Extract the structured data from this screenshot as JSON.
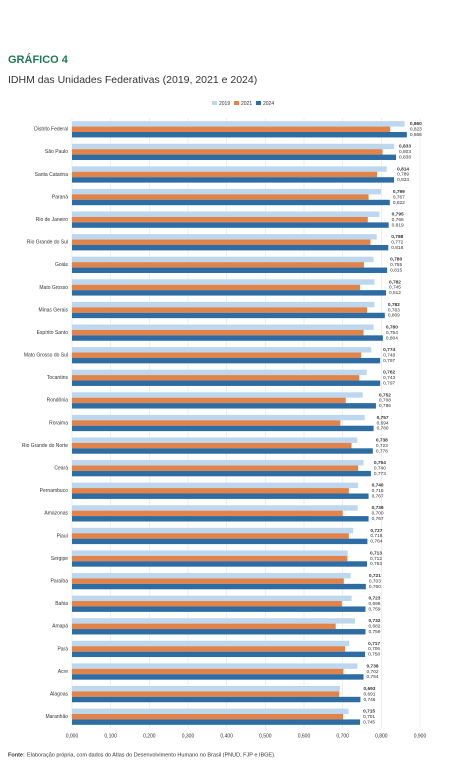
{
  "chart_data": {
    "type": "hbar",
    "heading": "GRÁFICO 4",
    "title": "IDHM das Unidades Federativas (2019, 2021 e 2024)",
    "categories": [
      "Distrito Federal",
      "São Paulo",
      "Santa Catarina",
      "Paraná",
      "Rio de Janeiro",
      "Rio Grande do Sul",
      "Goiás",
      "Mato Grosso",
      "Minas Gerais",
      "Espírito Santo",
      "Mato Grosso do Sul",
      "Tocantins",
      "Rondônia",
      "Roraima",
      "Rio Grande do Norte",
      "Ceará",
      "Pernambuco",
      "Amazonas",
      "Piauí",
      "Sergipe",
      "Paraíba",
      "Bahia",
      "Amapá",
      "Pará",
      "Acre",
      "Alagoas",
      "Maranhão"
    ],
    "series": [
      {
        "name": "2019",
        "color": "#bdd7ee",
        "values": [
          0.86,
          0.833,
          0.814,
          0.799,
          0.795,
          0.788,
          0.78,
          0.782,
          0.782,
          0.78,
          0.774,
          0.762,
          0.752,
          0.757,
          0.738,
          0.754,
          0.74,
          0.739,
          0.727,
          0.713,
          0.721,
          0.723,
          0.732,
          0.717,
          0.738,
          0.693,
          0.715
        ],
        "value_labels": [
          "0,860",
          "0,833",
          "0,814",
          "0,799",
          "0,795",
          "0,788",
          "0,780",
          "0,782",
          "0,782",
          "0,780",
          "0,774",
          "0,762",
          "0,752",
          "0,757",
          "0,738",
          "0,754",
          "0,740",
          "0,739",
          "0,727",
          "0,713",
          "0,721",
          "0,723",
          "0,732",
          "0,717",
          "0,738",
          "0,693",
          "0,715"
        ]
      },
      {
        "name": "2021",
        "color": "#e2844a",
        "values": [
          0.823,
          0.803,
          0.789,
          0.767,
          0.765,
          0.772,
          0.755,
          0.745,
          0.763,
          0.754,
          0.748,
          0.743,
          0.708,
          0.694,
          0.723,
          0.74,
          0.716,
          0.7,
          0.716,
          0.712,
          0.703,
          0.698,
          0.682,
          0.706,
          0.702,
          0.691,
          0.701
        ],
        "value_labels": [
          "0,823",
          "0,803",
          "0,789",
          "0,767",
          "0,765",
          "0,772",
          "0,755",
          "0,745",
          "0,763",
          "0,754",
          "0,748",
          "0,743",
          "0,708",
          "0,694",
          "0,723",
          "0,740",
          "0,716",
          "0,700",
          "0,716",
          "0,712",
          "0,703",
          "0,698",
          "0,682",
          "0,706",
          "0,702",
          "0,691",
          "0,701"
        ]
      },
      {
        "name": "2024",
        "color": "#2e6da4",
        "values": [
          0.866,
          0.838,
          0.833,
          0.822,
          0.819,
          0.818,
          0.815,
          0.812,
          0.809,
          0.804,
          0.797,
          0.797,
          0.786,
          0.78,
          0.778,
          0.773,
          0.767,
          0.767,
          0.764,
          0.763,
          0.76,
          0.759,
          0.759,
          0.758,
          0.754,
          0.746,
          0.745
        ],
        "value_labels": [
          "0,866",
          "0,838",
          "0,833",
          "0,822",
          "0,819",
          "0,818",
          "0,815",
          "0,812",
          "0,809",
          "0,804",
          "0,797",
          "0,797",
          "0,786",
          "0,780",
          "0,778",
          "0,773",
          "0,767",
          "0,767",
          "0,764",
          "0,763",
          "0,760",
          "0,759",
          "0,759",
          "0,758",
          "0,754",
          "0,746",
          "0,745"
        ]
      }
    ],
    "xlim": [
      0,
      0.9
    ],
    "xticks": [
      {
        "value": 0,
        "label": "0,000"
      },
      {
        "value": 0.1,
        "label": "0,100"
      },
      {
        "value": 0.2,
        "label": "0,200"
      },
      {
        "value": 0.3,
        "label": "0,300"
      },
      {
        "value": 0.4,
        "label": "0,400"
      },
      {
        "value": 0.5,
        "label": "0,500"
      },
      {
        "value": 0.6,
        "label": "0,600"
      },
      {
        "value": 0.7,
        "label": "0,700"
      },
      {
        "value": 0.8,
        "label": "0,800"
      },
      {
        "value": 0.9,
        "label": "0,900"
      }
    ],
    "grid": true,
    "legend": "top-right",
    "source_label": "Fonte:",
    "source": "Elaboração própria, com dados do Atlas do Desenvolvimento Humano no Brasil (PNUD, FJP e IBGE)."
  }
}
